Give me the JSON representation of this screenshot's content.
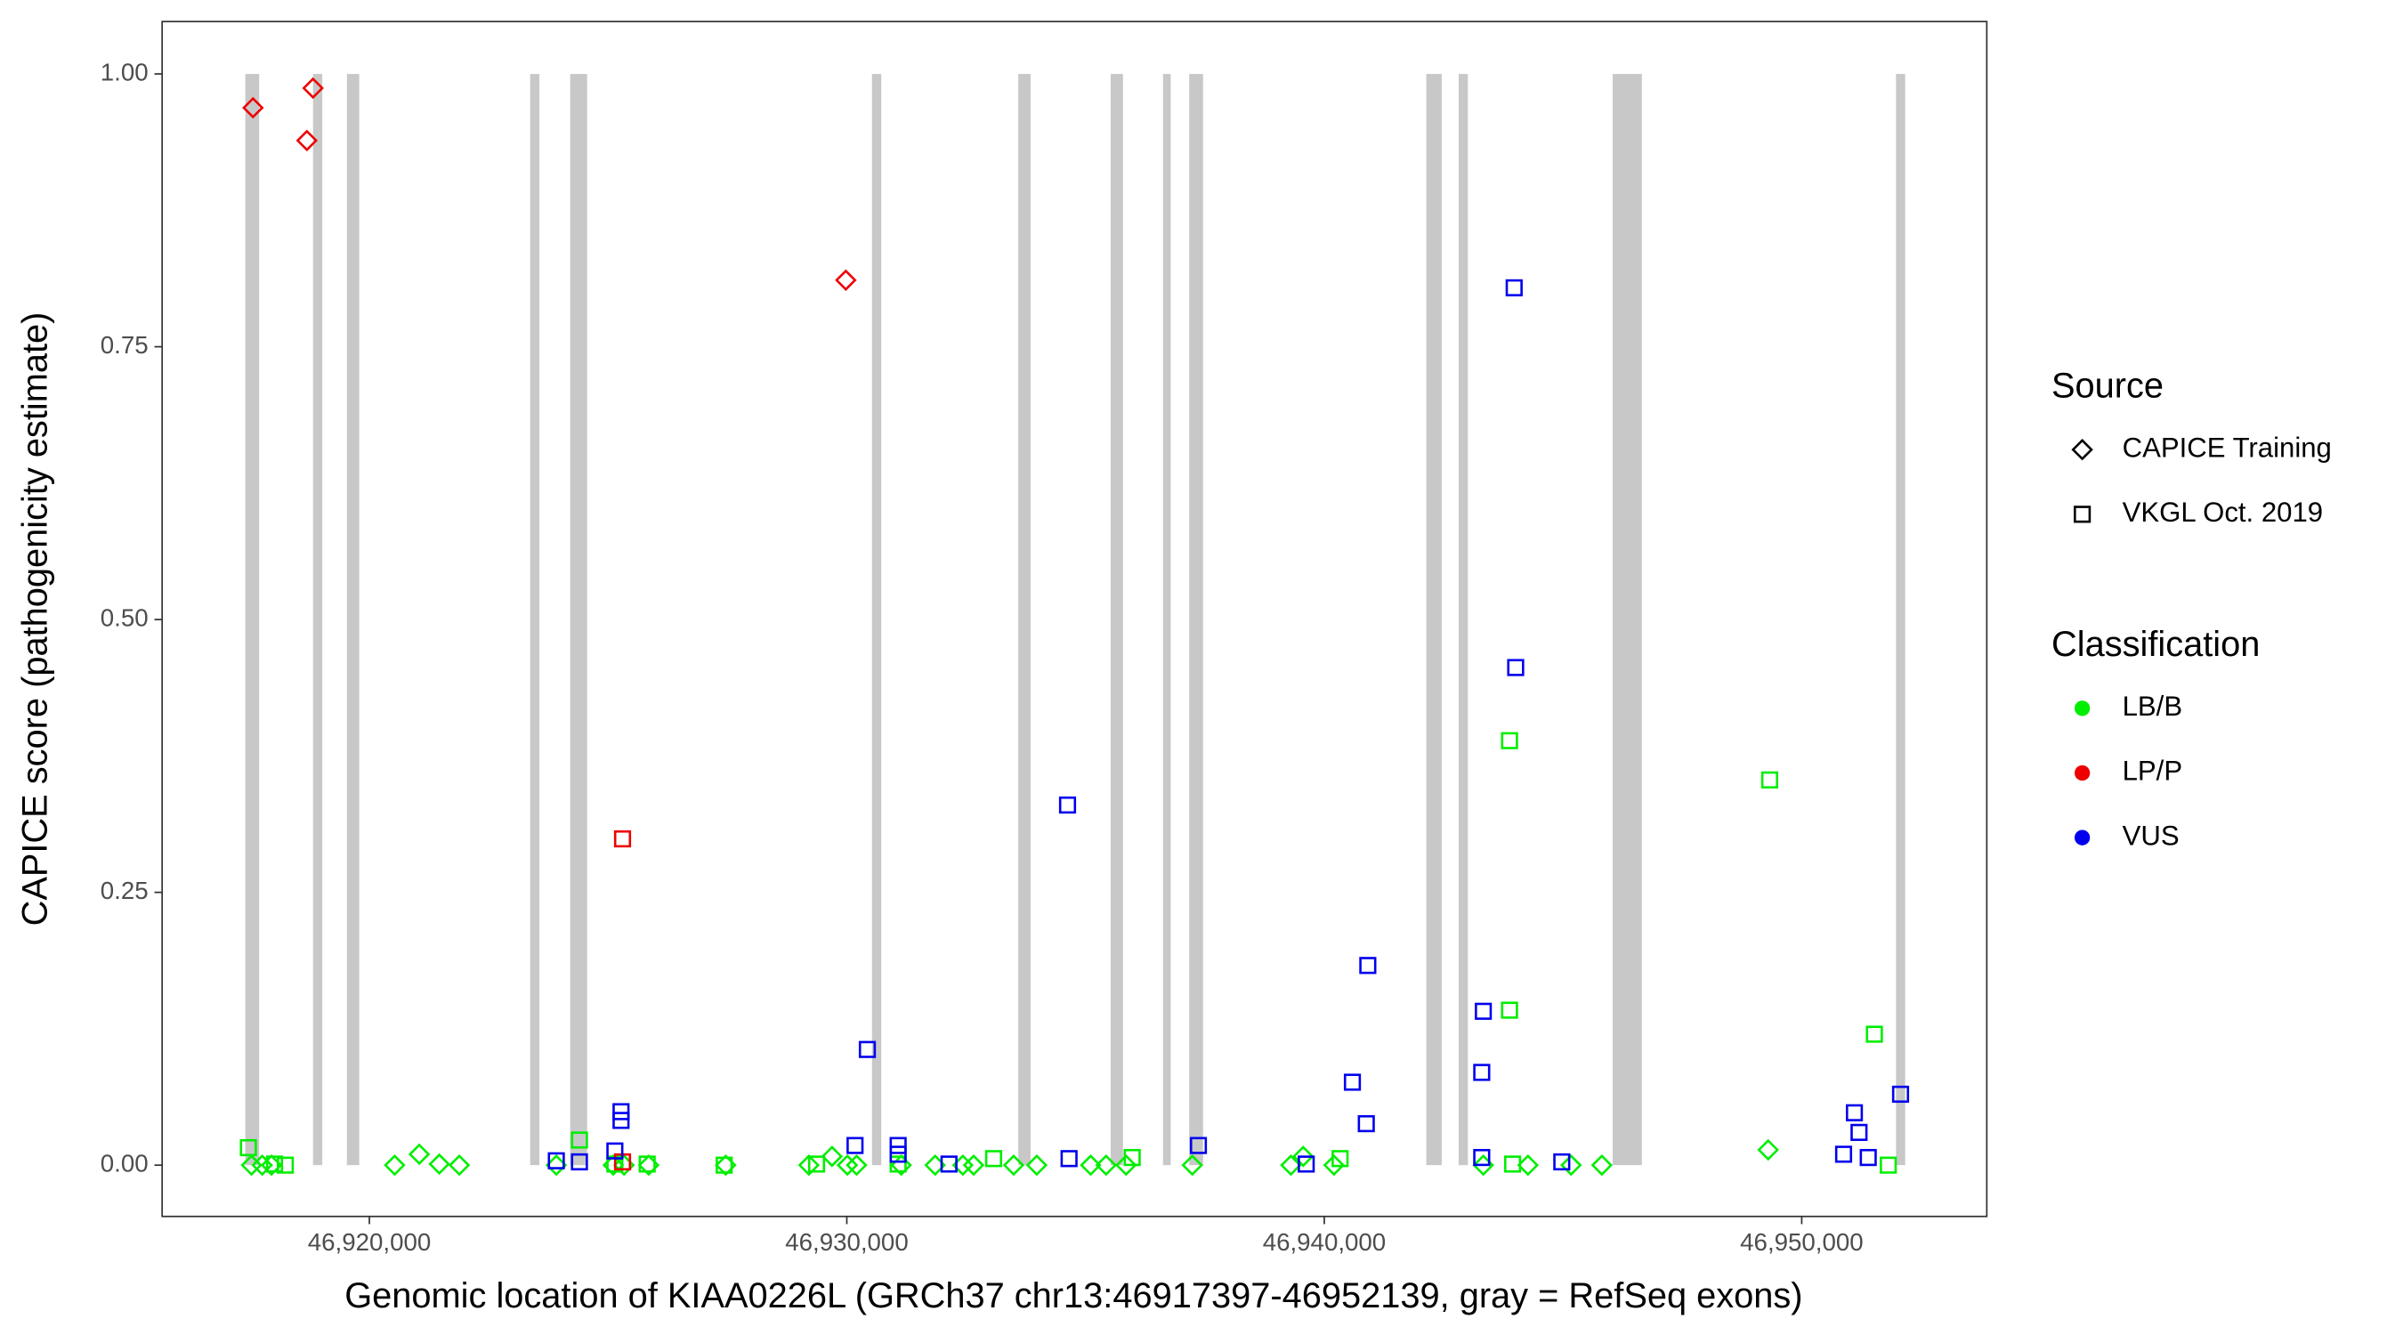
{
  "chart_data": {
    "type": "scatter",
    "x_label": "Genomic location of KIAA0226L (GRCh37 chr13:46917397-46952139, gray = RefSeq exons)",
    "y_label": "CAPICE score (pathogenicity estimate)",
    "xlim": [
      46915660,
      46953876
    ],
    "ylim": [
      -0.047,
      1.048
    ],
    "xticks": [
      {
        "value": 46920000,
        "label": "46,920,000"
      },
      {
        "value": 46930000,
        "label": "46,930,000"
      },
      {
        "value": 46940000,
        "label": "46,940,000"
      },
      {
        "value": 46950000,
        "label": "46,950,000"
      }
    ],
    "yticks": [
      {
        "value": 0,
        "label": "0.00"
      },
      0.25,
      {
        "value": 0.5,
        "label": "0.50"
      },
      0.75,
      {
        "value": 1,
        "label": "1.00"
      }
    ],
    "grid": false,
    "exons_color": "#c8c8c8",
    "exons": [
      [
        46917402,
        46917692
      ],
      [
        46918820,
        46919014
      ],
      [
        46919530,
        46919788
      ],
      [
        46923368,
        46923561
      ],
      [
        46924206,
        46924561
      ],
      [
        46930527,
        46930721
      ],
      [
        46933591,
        46933849
      ],
      [
        46935526,
        46935784
      ],
      [
        46936623,
        46936784
      ],
      [
        46937171,
        46937461
      ],
      [
        46942137,
        46942460
      ],
      [
        46942815,
        46943008
      ],
      [
        46946040,
        46946652
      ],
      [
        46951974,
        46952167
      ]
    ],
    "source_title": "Source",
    "sources": [
      {
        "name": "CAPICE Training",
        "shape": "diamond"
      },
      {
        "name": "VKGL Oct. 2019",
        "shape": "square"
      }
    ],
    "legend_title": "Classification",
    "series": [
      {
        "name": "LB/B",
        "color": "#00ee00",
        "by_source": [
          {
            "x": [
              46917531,
              46917756,
              46917950,
              46920530,
              46921046,
              46921465,
              46921884,
              46923916,
              46925109,
              46925335,
              46925851,
              46927464,
              46929206,
              46929690,
              46930012,
              46930205,
              46931140,
              46931850,
              46932430,
              46932656,
              46933494,
              46933978,
              46935107,
              46935430,
              46935849,
              46937236,
              46939300,
              46939558,
              46940203,
              46943331,
              46944266,
              46945169,
              46945814,
              46949297
            ],
            "values": [
              0,
              0,
              0,
              0,
              0.01,
              0.001,
              0,
              0,
              0,
              0,
              0,
              0,
              0,
              0.008,
              0,
              0,
              0,
              0,
              0,
              0,
              0,
              0,
              0,
              0,
              0,
              0,
              0,
              0.008,
              0,
              0,
              0,
              0,
              0,
              0.014
            ]
          },
          {
            "x": [
              46917466,
              46918014,
              46918240,
              46924400,
              46925142,
              46925819,
              46927432,
              46929367,
              46931075,
              46933075,
              46935977,
              46940331,
              46943880,
              46943880,
              46943945,
              46949329,
              46951522,
              46951812
            ],
            "values": [
              0.016,
              0.001,
              0,
              0.023,
              0.001,
              0.001,
              0,
              0.001,
              0.001,
              0.006,
              0.007,
              0.006,
              0.389,
              0.142,
              0.001,
              0.353,
              0.12,
              0
            ]
          }
        ]
      },
      {
        "name": "LP/P",
        "color": "#ee0000",
        "by_source": [
          {
            "x": [
              46917563,
              46918692,
              46918820,
              46929979
            ],
            "values": [
              0.969,
              0.939,
              0.987,
              0.811
            ]
          },
          {
            "x": [
              46925303,
              46925303
            ],
            "values": [
              0.299,
              0.003
            ]
          }
        ]
      },
      {
        "name": "VUS",
        "color": "#0000ee",
        "by_source": [
          {
            "x": [],
            "values": []
          },
          {
            "x": [
              46923916,
              46924400,
              46925271,
              46925271,
              46925142,
              46930172,
              46930430,
              46931075,
              46931075,
              46932140,
              46934623,
              46934655,
              46937364,
              46939622,
              46940589,
              46940880,
              46940912,
              46943298,
              46943331,
              46943298,
              46943977,
              46944009,
              46944975,
              46950877,
              46951103,
              46951200,
              46951393,
              46952070
            ],
            "values": [
              0.004,
              0.003,
              0.049,
              0.041,
              0.013,
              0.018,
              0.106,
              0.018,
              0.01,
              0.001,
              0.33,
              0.006,
              0.018,
              0.001,
              0.076,
              0.038,
              0.183,
              0.085,
              0.141,
              0.007,
              0.804,
              0.456,
              0.003,
              0.01,
              0.048,
              0.03,
              0.007,
              0.065
            ]
          }
        ]
      }
    ]
  }
}
